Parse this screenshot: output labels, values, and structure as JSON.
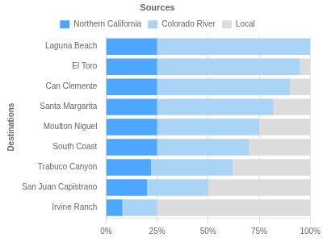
{
  "chart_data": {
    "type": "bar",
    "orientation": "horizontal",
    "stacked": true,
    "ylabel": "Destinations",
    "legend_title": null,
    "categories": [
      "Laguna Beach",
      "El Toro",
      "Can Clemente",
      "Santa Margarita",
      "Moulton Niguel",
      "South Coast",
      "Trabuco Canyon",
      "San Juan Capistrano",
      "Irvine Ranch"
    ],
    "series": [
      {
        "name": "Northern California",
        "color": "#4da6ff",
        "values": [
          25,
          25,
          25,
          25,
          25,
          25,
          22,
          20,
          8
        ]
      },
      {
        "name": "Colorado River",
        "color": "#aad4f5",
        "values": [
          75,
          70,
          65,
          57,
          50,
          45,
          40,
          30,
          17
        ]
      },
      {
        "name": "Local",
        "color": "#dcdcdc",
        "values": [
          0,
          5,
          10,
          18,
          25,
          30,
          38,
          50,
          75
        ]
      }
    ],
    "annotations": [
      "Sources"
    ],
    "xlim": [
      0,
      100
    ],
    "xticks": [
      {
        "value": 0,
        "label": "0%"
      },
      {
        "value": 25,
        "label": "25%"
      },
      {
        "value": 50,
        "label": "50%"
      },
      {
        "value": 75,
        "label": "75%"
      },
      {
        "value": 100,
        "label": "100%"
      }
    ],
    "grid": true,
    "legend": "top"
  }
}
